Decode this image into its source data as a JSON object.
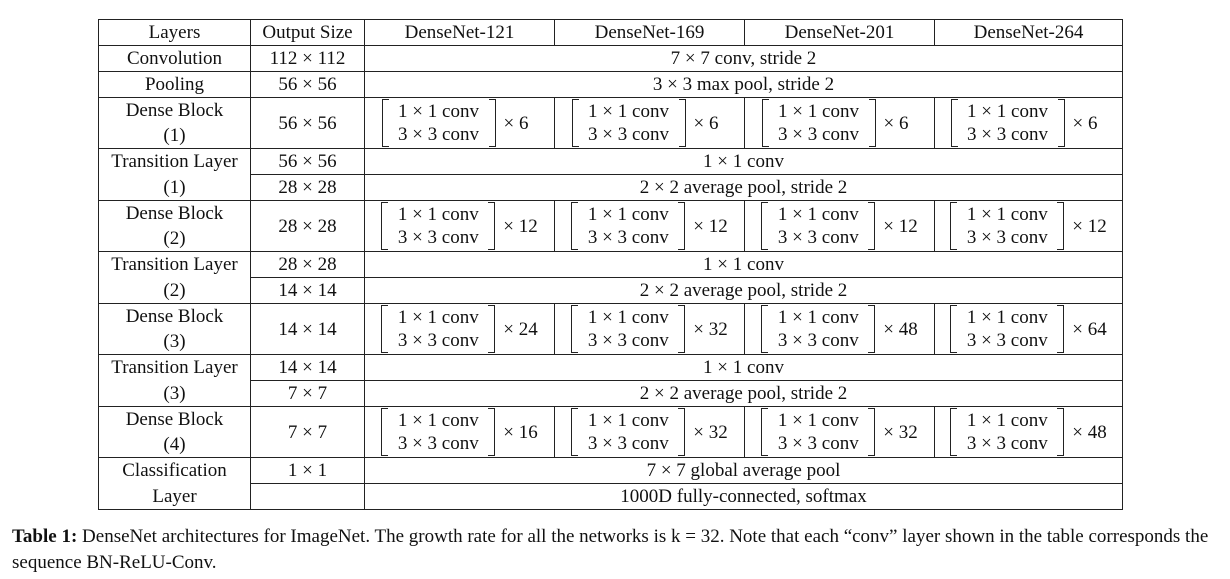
{
  "header": {
    "layers": "Layers",
    "output_size": "Output Size",
    "nets": [
      "DenseNet-121",
      "DenseNet-169",
      "DenseNet-201",
      "DenseNet-264"
    ]
  },
  "rows": {
    "conv": {
      "name": "Convolution",
      "size": "112 × 112",
      "desc": "7 × 7 conv, stride 2"
    },
    "pool": {
      "name": "Pooling",
      "size": "56 × 56",
      "desc": "3 × 3 max pool, stride 2"
    },
    "db1": {
      "name1": "Dense Block",
      "name2": "(1)",
      "size": "56 × 56",
      "line1": "1 × 1 conv",
      "line2": "3 × 3 conv",
      "mults": [
        "× 6",
        "× 6",
        "× 6",
        "× 6"
      ]
    },
    "tl1": {
      "name1": "Transition Layer",
      "name2": "(1)",
      "size1": "56 × 56",
      "size2": "28 × 28",
      "desc1": "1 × 1 conv",
      "desc2": "2 × 2 average pool, stride 2"
    },
    "db2": {
      "name1": "Dense Block",
      "name2": "(2)",
      "size": "28 × 28",
      "line1": "1 × 1 conv",
      "line2": "3 × 3 conv",
      "mults": [
        "× 12",
        "× 12",
        "× 12",
        "× 12"
      ]
    },
    "tl2": {
      "name1": "Transition Layer",
      "name2": "(2)",
      "size1": "28 × 28",
      "size2": "14 × 14",
      "desc1": "1 × 1 conv",
      "desc2": "2 × 2 average pool, stride 2"
    },
    "db3": {
      "name1": "Dense Block",
      "name2": "(3)",
      "size": "14 × 14",
      "line1": "1 × 1 conv",
      "line2": "3 × 3 conv",
      "mults": [
        "× 24",
        "× 32",
        "× 48",
        "× 64"
      ]
    },
    "tl3": {
      "name1": "Transition Layer",
      "name2": "(3)",
      "size1": "14 × 14",
      "size2": "7 × 7",
      "desc1": "1 × 1 conv",
      "desc2": "2 × 2 average pool, stride 2"
    },
    "db4": {
      "name1": "Dense Block",
      "name2": "(4)",
      "size": "7 × 7",
      "line1": "1 × 1 conv",
      "line2": "3 × 3 conv",
      "mults": [
        "× 16",
        "× 32",
        "× 32",
        "× 48"
      ]
    },
    "cls": {
      "name1": "Classification",
      "name2": "Layer",
      "size": "1 × 1",
      "desc1": "7 × 7 global average pool",
      "desc2": "1000D fully-connected, softmax"
    }
  },
  "caption": {
    "label": "Table 1:",
    "text": " DenseNet architectures for ImageNet. The growth rate for all the networks is k = 32. Note that each “conv” layer shown in the table corresponds the sequence BN-ReLU-Conv."
  }
}
